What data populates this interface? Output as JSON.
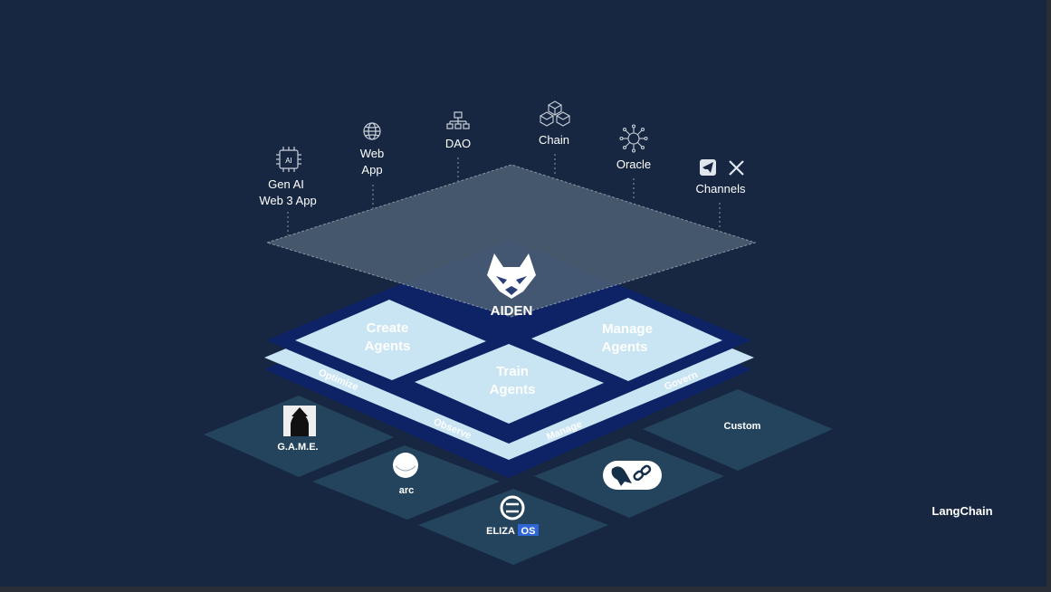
{
  "top_items": {
    "gen_ai": {
      "line1": "Gen AI",
      "line2": "Web 3 App",
      "badge": "AI",
      "icon": "ai-chip-icon"
    },
    "web_app": {
      "line1": "Web",
      "line2": "App",
      "icon": "globe-icon"
    },
    "dao": {
      "label": "DAO",
      "icon": "org-chart-icon"
    },
    "chain": {
      "label": "Chain",
      "icon": "blocks-icon"
    },
    "oracle": {
      "label": "Oracle",
      "icon": "network-hub-icon"
    },
    "channels": {
      "label": "Channels",
      "icons": [
        "telegram-icon",
        "x-icon"
      ]
    }
  },
  "brand": {
    "name": "AIDEN",
    "icon": "fox-logo-icon"
  },
  "core": {
    "create": {
      "line1": "Create",
      "line2": "Agents"
    },
    "manage": {
      "line1": "Manage",
      "line2": "Agents"
    },
    "train": {
      "line1": "Train",
      "line2": "Agents"
    }
  },
  "ring": {
    "optimize": "Optimize",
    "observe": "Observe",
    "manage": "Manage",
    "govern": "Govern"
  },
  "frameworks": {
    "game": {
      "label": "G.A.M.E."
    },
    "arc": {
      "label": "arc"
    },
    "eliza": {
      "label_main": "ELIZA",
      "label_os": "OS"
    },
    "langchain": {
      "label": "LangChain",
      "icon": "parrot-chain-icon"
    },
    "custom": {
      "label": "Custom"
    }
  },
  "colors": {
    "background": "#172741",
    "top_plane": "#435569",
    "dark_navy": "#0e2266",
    "light_tile": "#c9e4f3",
    "bottom_tile": "#23445c",
    "text": "#ffffff"
  }
}
